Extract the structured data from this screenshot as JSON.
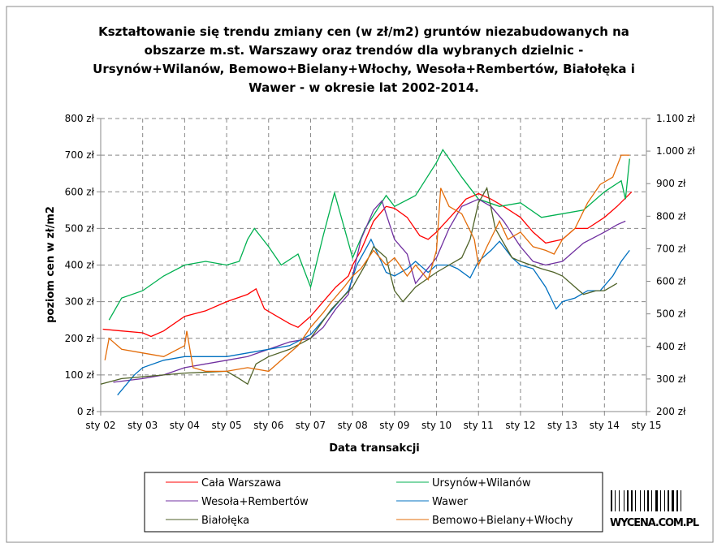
{
  "chart_data": {
    "type": "line",
    "title_lines": [
      "Kształtowanie się trendu zmiany cen (w zł/m2) gruntów niezabudowanych na",
      "obszarze m.st. Warszawy oraz trendów dla wybranych dzielnic -",
      "Ursynów+Wilanów, Bemowo+Bielany+Włochy, Wesoła+Rembertów, Białołęka i",
      "Wawer - w okresie lat 2002-2014."
    ],
    "xlabel": "Data transakcji",
    "ylabel": "poziom cen w zł/m2",
    "x_ticks": [
      "sty 02",
      "sty 03",
      "sty 04",
      "sty 05",
      "sty 06",
      "sty 07",
      "sty 08",
      "sty 09",
      "sty 10",
      "sty 11",
      "sty 12",
      "sty 13",
      "sty 14",
      "sty 15"
    ],
    "xlim": [
      2002,
      2015
    ],
    "ylim": [
      0,
      800
    ],
    "y_ticks": [
      "0 zł",
      "100 zł",
      "200 zł",
      "300 zł",
      "400 zł",
      "500 zł",
      "600 zł",
      "700 zł",
      "800 zł"
    ],
    "y2lim": [
      200,
      1100
    ],
    "y2_ticks": [
      "200 zł",
      "300 zł",
      "400 zł",
      "500 zł",
      "600 zł",
      "700 zł",
      "800 zł",
      "900 zł",
      "1.000 zł",
      "1.100 zł"
    ],
    "grid": true,
    "legend_position": "bottom",
    "series": [
      {
        "name": "Cała Warszawa",
        "color": "#ff0000",
        "x": [
          2002.05,
          2002.5,
          2003,
          2003.2,
          2003.5,
          2004,
          2004.5,
          2005,
          2005.5,
          2005.7,
          2005.9,
          2006.2,
          2006.5,
          2006.7,
          2007,
          2007.3,
          2007.6,
          2007.9,
          2008,
          2008.2,
          2008.5,
          2008.8,
          2009,
          2009.3,
          2009.6,
          2009.8,
          2010,
          2010.4,
          2010.7,
          2011,
          2011.3,
          2011.6,
          2012,
          2012.3,
          2012.6,
          2013,
          2013.3,
          2013.6,
          2014,
          2014.3,
          2014.65
        ],
        "y": [
          225,
          220,
          215,
          205,
          220,
          260,
          275,
          300,
          320,
          335,
          280,
          260,
          240,
          230,
          260,
          300,
          340,
          370,
          400,
          440,
          520,
          560,
          555,
          530,
          480,
          470,
          490,
          540,
          580,
          595,
          580,
          560,
          530,
          490,
          460,
          470,
          500,
          500,
          530,
          560,
          600
        ]
      },
      {
        "name": "Ursynów+Wilanów",
        "color": "#00b050",
        "x": [
          2002.2,
          2002.5,
          2003,
          2003.5,
          2004,
          2004.5,
          2005,
          2005.3,
          2005.5,
          2005.66,
          2006,
          2006.3,
          2006.7,
          2007,
          2007.3,
          2007.57,
          2008,
          2008.3,
          2008.8,
          2009,
          2009.5,
          2010,
          2010.15,
          2010.6,
          2011,
          2011.5,
          2012,
          2012.5,
          2013,
          2013.5,
          2014,
          2014.4,
          2014.5,
          2014.6
        ],
        "y": [
          250,
          310,
          330,
          370,
          400,
          410,
          400,
          410,
          470,
          500,
          450,
          400,
          430,
          340,
          480,
          597,
          420,
          500,
          590,
          560,
          590,
          680,
          715,
          640,
          580,
          560,
          570,
          530,
          540,
          550,
          600,
          630,
          580,
          690
        ]
      },
      {
        "name": "Wesoła+Rembertów",
        "color": "#7030a0",
        "x": [
          2002.3,
          2003,
          2003.5,
          2004,
          2004.5,
          2005,
          2005.5,
          2006,
          2006.5,
          2007,
          2007.3,
          2007.6,
          2007.9,
          2008.2,
          2008.5,
          2008.7,
          2009,
          2009.3,
          2009.5,
          2010,
          2010.3,
          2010.6,
          2011,
          2011.3,
          2011.6,
          2012,
          2012.3,
          2012.6,
          2013,
          2013.5,
          2014,
          2014.3,
          2014.5
        ],
        "y": [
          80,
          90,
          100,
          120,
          130,
          140,
          150,
          170,
          190,
          200,
          230,
          280,
          320,
          470,
          550,
          575,
          470,
          430,
          350,
          420,
          500,
          560,
          580,
          560,
          520,
          450,
          410,
          400,
          410,
          460,
          490,
          510,
          520
        ]
      },
      {
        "name": "Wawer",
        "color": "#0070c0",
        "x": [
          2002.4,
          2002.8,
          2003,
          2003.5,
          2004,
          2005,
          2005.5,
          2006,
          2006.5,
          2007,
          2007.3,
          2007.6,
          2007.9,
          2008.1,
          2008.44,
          2008.8,
          2009,
          2009.3,
          2009.5,
          2009.8,
          2010,
          2010.3,
          2010.5,
          2010.8,
          2011,
          2011.3,
          2011.5,
          2011.8,
          2012,
          2012.3,
          2012.6,
          2012.85,
          2013,
          2013.3,
          2013.6,
          2013.9,
          2014.2,
          2014.4,
          2014.6
        ],
        "y": [
          45,
          100,
          120,
          140,
          150,
          150,
          160,
          170,
          180,
          210,
          250,
          290,
          330,
          400,
          470,
          380,
          370,
          390,
          410,
          380,
          400,
          400,
          390,
          365,
          410,
          440,
          465,
          420,
          400,
          390,
          340,
          280,
          300,
          310,
          330,
          330,
          370,
          410,
          440
        ]
      },
      {
        "name": "Białołęka",
        "color": "#4f6228",
        "x": [
          2002,
          2002.5,
          2003,
          2004,
          2005,
          2005.3,
          2005.5,
          2005.7,
          2006,
          2006.5,
          2007,
          2007.5,
          2008,
          2008.3,
          2008.5,
          2008.8,
          2009,
          2009.2,
          2009.5,
          2010,
          2010.3,
          2010.6,
          2010.8,
          2011,
          2011.2,
          2011.4,
          2011.6,
          2011.8,
          2012,
          2012.5,
          2012.8,
          2013,
          2013.3,
          2013.5,
          2013.8,
          2014,
          2014.3
        ],
        "y": [
          75,
          90,
          95,
          105,
          110,
          90,
          75,
          130,
          150,
          170,
          200,
          280,
          340,
          400,
          450,
          420,
          330,
          300,
          340,
          380,
          400,
          420,
          470,
          570,
          610,
          500,
          460,
          420,
          410,
          390,
          380,
          370,
          340,
          320,
          330,
          330,
          350
        ]
      },
      {
        "name": "Bemowo+Bielany+Włochy",
        "color": "#e36c09",
        "x": [
          2002.1,
          2002.2,
          2002.5,
          2003,
          2003.5,
          2004,
          2004.05,
          2004.2,
          2004.5,
          2005,
          2005.5,
          2006,
          2006.3,
          2006.7,
          2007,
          2007.3,
          2007.5,
          2007.8,
          2008,
          2008.2,
          2008.5,
          2008.8,
          2009,
          2009.3,
          2009.5,
          2009.8,
          2010,
          2010.1,
          2010.3,
          2010.6,
          2010.9,
          2011,
          2011.2,
          2011.5,
          2011.7,
          2012,
          2012.3,
          2012.6,
          2012.8,
          2013,
          2013.3,
          2013.6,
          2013.9,
          2014.2,
          2014.4,
          2014.6
        ],
        "y": [
          140,
          200,
          170,
          160,
          150,
          180,
          220,
          120,
          110,
          110,
          120,
          110,
          140,
          180,
          230,
          270,
          300,
          340,
          370,
          390,
          440,
          400,
          420,
          370,
          400,
          360,
          440,
          610,
          560,
          540,
          470,
          400,
          450,
          520,
          470,
          490,
          450,
          440,
          430,
          470,
          500,
          570,
          620,
          640,
          700,
          700
        ]
      }
    ]
  },
  "logo": {
    "text": "WYCENA.COM.PL"
  }
}
